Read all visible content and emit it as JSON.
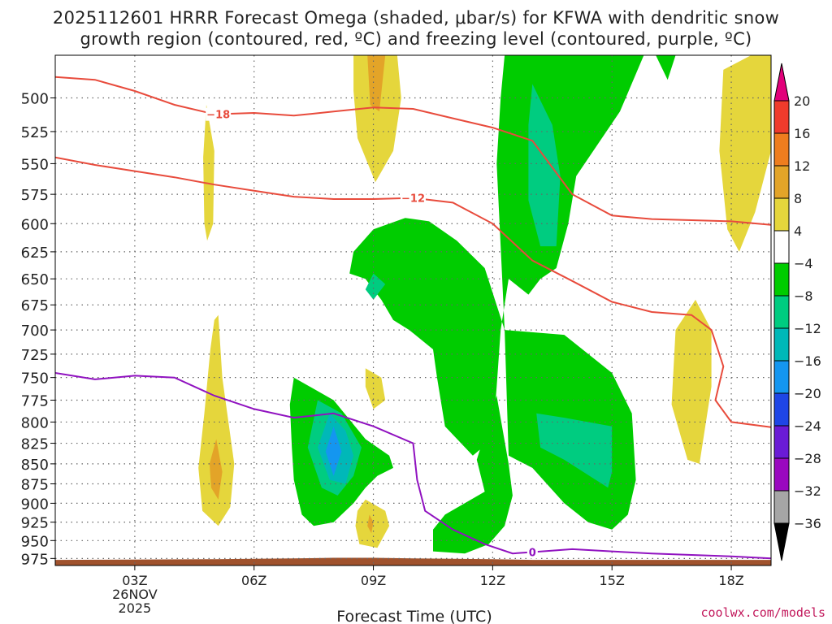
{
  "title_line1": "2025112601 HRRR Forecast Omega (shaded, μbar/s) for KFWA with dendritic snow",
  "title_line2": "growth region (contoured, red, ºC) and freezing level (contoured, purple, ºC)",
  "footer": "coolwx.com/models",
  "chart_data": {
    "type": "heatmap",
    "xlabel": "Forecast Time (UTC)",
    "x_ticks": [
      {
        "hour": 3,
        "label": "03Z",
        "sub1": "26NOV",
        "sub2": "2025"
      },
      {
        "hour": 6,
        "label": "06Z"
      },
      {
        "hour": 9,
        "label": "09Z"
      },
      {
        "hour": 12,
        "label": "12Z"
      },
      {
        "hour": 15,
        "label": "15Z"
      },
      {
        "hour": 18,
        "label": "18Z"
      }
    ],
    "xlim": [
      1,
      19
    ],
    "ylabel": "",
    "y_ticks": [
      500,
      525,
      550,
      575,
      600,
      625,
      650,
      675,
      700,
      725,
      750,
      775,
      800,
      825,
      850,
      875,
      900,
      925,
      950,
      975
    ],
    "ylim": [
      470,
      985
    ],
    "y_scale": "log",
    "y_reversed": true,
    "grid": true,
    "colorbar": {
      "labels": [
        "20",
        "16",
        "12",
        "8",
        "4",
        "−4",
        "−8",
        "−12",
        "−16",
        "−20",
        "−24",
        "−28",
        "−32",
        "−36"
      ],
      "colors": [
        "#e2007a",
        "#ef3b2c",
        "#ee7d1e",
        "#e3a428",
        "#e5d63c",
        "#ffffff",
        "#00cc00",
        "#00cc80",
        "#00b8b8",
        "#1496f0",
        "#1e46e6",
        "#6a1bd6",
        "#9a08c0",
        "#a6a6a6",
        "#000000"
      ]
    },
    "omega_regions": [
      {
        "value_range": "4 to 8",
        "color": "#e5d63c",
        "points": [
          [
            4.8,
            505
          ],
          [
            5.0,
            540
          ],
          [
            4.97,
            600
          ],
          [
            4.82,
            615
          ],
          [
            4.75,
            600
          ],
          [
            4.72,
            545
          ]
        ]
      },
      {
        "value_range": "4 to 8",
        "color": "#e5d63c",
        "points": [
          [
            8.5,
            470
          ],
          [
            9.6,
            470
          ],
          [
            9.7,
            500
          ],
          [
            9.5,
            540
          ],
          [
            9.05,
            565
          ],
          [
            8.6,
            530
          ],
          [
            8.5,
            495
          ]
        ]
      },
      {
        "value_range": "8 to 12",
        "color": "#e3a428",
        "points": [
          [
            8.85,
            470
          ],
          [
            9.3,
            470
          ],
          [
            9.15,
            510
          ],
          [
            8.92,
            505
          ]
        ]
      },
      {
        "value_range": "4 to 8",
        "color": "#e5d63c",
        "points": [
          [
            5.1,
            685
          ],
          [
            5.2,
            750
          ],
          [
            5.5,
            850
          ],
          [
            5.4,
            905
          ],
          [
            5.1,
            930
          ],
          [
            4.7,
            910
          ],
          [
            4.6,
            855
          ],
          [
            4.75,
            790
          ],
          [
            4.9,
            720
          ],
          [
            5.0,
            690
          ]
        ]
      },
      {
        "value_range": "8 to 12",
        "color": "#e3a428",
        "points": [
          [
            5.05,
            820
          ],
          [
            5.2,
            860
          ],
          [
            5.1,
            895
          ],
          [
            4.92,
            880
          ],
          [
            4.88,
            850
          ]
        ]
      },
      {
        "value_range": "4 to 8",
        "color": "#e5d63c",
        "points": [
          [
            8.8,
            740
          ],
          [
            9.2,
            750
          ],
          [
            9.3,
            775
          ],
          [
            9.0,
            785
          ],
          [
            8.8,
            760
          ]
        ]
      },
      {
        "value_range": "4 to 8",
        "color": "#e5d63c",
        "points": [
          [
            8.6,
            910
          ],
          [
            8.8,
            895
          ],
          [
            9.3,
            910
          ],
          [
            9.4,
            930
          ],
          [
            9.1,
            960
          ],
          [
            8.65,
            955
          ],
          [
            8.55,
            930
          ]
        ]
      },
      {
        "value_range": "8 to 12",
        "color": "#e3a428",
        "points": [
          [
            8.9,
            915
          ],
          [
            9.0,
            925
          ],
          [
            8.95,
            940
          ],
          [
            8.85,
            930
          ]
        ]
      },
      {
        "value_range": "4 to 8",
        "color": "#e5d63c",
        "points": [
          [
            18.9,
            470
          ],
          [
            19,
            470
          ],
          [
            19,
            540
          ],
          [
            18.6,
            590
          ],
          [
            18.2,
            625
          ],
          [
            17.9,
            605
          ],
          [
            17.7,
            540
          ],
          [
            17.8,
            480
          ],
          [
            18.5,
            470
          ]
        ]
      },
      {
        "value_range": "4 to 8",
        "color": "#e5d63c",
        "points": [
          [
            17.1,
            670
          ],
          [
            17.5,
            700
          ],
          [
            17.5,
            760
          ],
          [
            17.2,
            850
          ],
          [
            16.9,
            845
          ],
          [
            16.5,
            780
          ],
          [
            16.6,
            700
          ]
        ]
      },
      {
        "value_range": "-4 to -8",
        "color": "#00cc00",
        "points": [
          [
            12.3,
            470
          ],
          [
            15.8,
            470
          ],
          [
            15.2,
            510
          ],
          [
            14.1,
            560
          ],
          [
            13.9,
            600
          ],
          [
            13.6,
            640
          ],
          [
            13.2,
            650
          ],
          [
            12.9,
            665
          ],
          [
            12.4,
            650
          ],
          [
            12.2,
            700
          ],
          [
            12.1,
            760
          ],
          [
            12.0,
            820
          ],
          [
            11.5,
            840
          ],
          [
            10.8,
            805
          ],
          [
            10.6,
            750
          ],
          [
            10.5,
            720
          ],
          [
            9.9,
            700
          ],
          [
            9.5,
            690
          ],
          [
            9.2,
            670
          ],
          [
            8.8,
            650
          ],
          [
            8.4,
            645
          ],
          [
            8.5,
            625
          ],
          [
            9.0,
            605
          ],
          [
            9.8,
            595
          ],
          [
            10.4,
            598
          ],
          [
            11.1,
            615
          ],
          [
            11.8,
            640
          ],
          [
            12.3,
            700
          ],
          [
            12.2,
            620
          ],
          [
            12.1,
            550
          ],
          [
            12.2,
            500
          ]
        ]
      },
      {
        "value_range": "-4 to -8",
        "color": "#00cc00",
        "points": [
          [
            15.4,
            470
          ],
          [
            16.6,
            470
          ],
          [
            16.4,
            487
          ],
          [
            16.1,
            470
          ]
        ]
      },
      {
        "value_range": "-4 to -8",
        "color": "#00cc00",
        "points": [
          [
            12.3,
            700
          ],
          [
            13.8,
            705
          ],
          [
            15.0,
            745
          ],
          [
            15.5,
            790
          ],
          [
            15.6,
            870
          ],
          [
            15.4,
            915
          ],
          [
            15.0,
            935
          ],
          [
            14.4,
            925
          ],
          [
            13.8,
            900
          ],
          [
            13.0,
            855
          ],
          [
            12.4,
            840
          ]
        ]
      },
      {
        "value_range": "-4 to -8",
        "color": "#00cc00",
        "points": [
          [
            12.1,
            770
          ],
          [
            12.4,
            850
          ],
          [
            12.5,
            890
          ],
          [
            12.3,
            930
          ],
          [
            11.9,
            955
          ],
          [
            11.3,
            968
          ],
          [
            10.5,
            965
          ],
          [
            10.5,
            935
          ],
          [
            10.8,
            915
          ],
          [
            11.8,
            885
          ],
          [
            11.6,
            845
          ]
        ]
      },
      {
        "value_range": "-4 to -8",
        "color": "#00cc00",
        "points": [
          [
            7.0,
            750
          ],
          [
            8.0,
            775
          ],
          [
            8.8,
            820
          ],
          [
            9.4,
            840
          ],
          [
            9.5,
            855
          ],
          [
            9.1,
            865
          ],
          [
            8.8,
            880
          ],
          [
            8.5,
            900
          ],
          [
            8.0,
            925
          ],
          [
            7.5,
            930
          ],
          [
            7.2,
            915
          ],
          [
            7.0,
            870
          ],
          [
            6.95,
            830
          ],
          [
            6.9,
            780
          ]
        ]
      },
      {
        "value_range": "-8 to -12",
        "color": "#00cc80",
        "points": [
          [
            13.0,
            490
          ],
          [
            13.5,
            520
          ],
          [
            13.7,
            560
          ],
          [
            13.6,
            620
          ],
          [
            13.2,
            620
          ],
          [
            12.9,
            580
          ],
          [
            12.9,
            520
          ]
        ]
      },
      {
        "value_range": "-8 to -12",
        "color": "#00cc80",
        "points": [
          [
            9.0,
            645
          ],
          [
            9.3,
            655
          ],
          [
            9.0,
            670
          ],
          [
            8.8,
            660
          ]
        ]
      },
      {
        "value_range": "-8 to -12",
        "color": "#00cc80",
        "points": [
          [
            13.1,
            790
          ],
          [
            13.8,
            795
          ],
          [
            15.0,
            805
          ],
          [
            15.0,
            860
          ],
          [
            14.9,
            880
          ],
          [
            13.8,
            845
          ],
          [
            13.2,
            830
          ]
        ]
      },
      {
        "value_range": "-8 to -12",
        "color": "#00cc80",
        "points": [
          [
            7.6,
            775
          ],
          [
            8.2,
            790
          ],
          [
            8.7,
            830
          ],
          [
            8.5,
            865
          ],
          [
            8.1,
            890
          ],
          [
            7.7,
            880
          ],
          [
            7.35,
            830
          ]
        ]
      },
      {
        "value_range": "-12 to -16",
        "color": "#00b8b8",
        "points": [
          [
            7.9,
            790
          ],
          [
            8.3,
            810
          ],
          [
            8.5,
            840
          ],
          [
            8.3,
            875
          ],
          [
            7.9,
            870
          ],
          [
            7.6,
            830
          ]
        ]
      },
      {
        "value_range": "-16 to -20",
        "color": "#1496f0",
        "points": [
          [
            8.0,
            805
          ],
          [
            8.2,
            835
          ],
          [
            8.0,
            865
          ],
          [
            7.8,
            835
          ]
        ]
      }
    ],
    "temperature_contours": [
      {
        "label": "−18",
        "color": "#e84b3c",
        "label_at": [
          5.1,
          512
        ],
        "x": [
          1.0,
          2.0,
          3.0,
          4.0,
          5.0,
          6.0,
          7.0,
          8.0,
          9.0,
          10.0,
          11.0,
          12.0,
          13.0,
          14.0,
          15.0,
          16.0,
          17.0,
          18.0,
          19.0
        ],
        "y": [
          485,
          487,
          495,
          505,
          512,
          511,
          513,
          510,
          507,
          508,
          515,
          522,
          532,
          575,
          593,
          596,
          597,
          598,
          601
        ]
      },
      {
        "label": "−12",
        "color": "#e84b3c",
        "label_at": [
          10.0,
          578
        ],
        "x": [
          1.0,
          2.0,
          3.0,
          4.0,
          5.0,
          6.0,
          7.0,
          8.0,
          9.0,
          10.0,
          11.0,
          12.0,
          13.0,
          14.0,
          15.0,
          16.0,
          17.0,
          17.5,
          17.8,
          17.6,
          18.0,
          19.0
        ],
        "y": [
          545,
          551,
          556,
          561,
          567,
          572,
          577,
          579,
          579,
          578,
          582,
          600,
          633,
          652,
          672,
          682,
          685,
          700,
          738,
          775,
          800,
          806
        ]
      }
    ],
    "freezing_level": {
      "label": "0",
      "color": "#9012c0",
      "label_at": [
        13.0,
        966
      ],
      "x": [
        1.0,
        2.0,
        3.0,
        4.0,
        5.0,
        6.0,
        7.0,
        8.0,
        9.0,
        10.0,
        10.1,
        10.3,
        11.0,
        11.8,
        12.5,
        13.0,
        14.0,
        15.0,
        16.0,
        17.0,
        18.0,
        19.0
      ],
      "y": [
        745,
        752,
        748,
        750,
        770,
        785,
        795,
        790,
        805,
        825,
        870,
        910,
        935,
        955,
        968,
        966,
        962,
        965,
        968,
        970,
        972,
        975
      ]
    },
    "terrain_surface": {
      "color": "#a0522d",
      "x": [
        1.0,
        5.0,
        7.0,
        8.0,
        9.0,
        10.0,
        12.0,
        13.0,
        19.0
      ],
      "y": [
        977,
        976,
        975,
        974,
        974,
        975,
        976,
        977,
        977
      ]
    }
  }
}
